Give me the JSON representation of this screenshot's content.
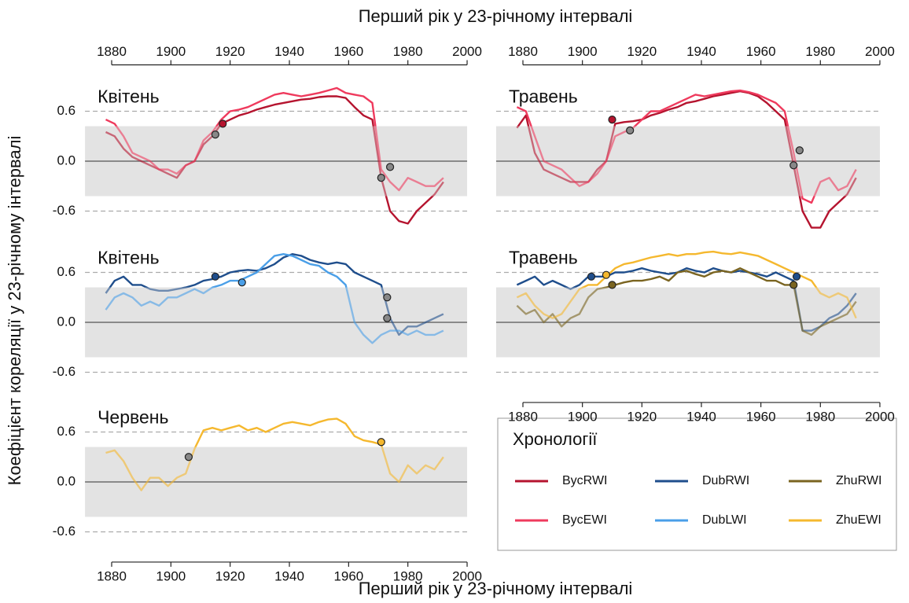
{
  "x_label": "Перший рік у 23-річному інтервалі",
  "y_label": "Коефіцієнт кореляції у 23-річному інтервалі",
  "legend_title": "Хронології",
  "chart_data": [
    {
      "type": "line",
      "title": "Квітень",
      "xaxis": "top",
      "yticklabels": true,
      "x": [
        1878,
        1881,
        1884,
        1887,
        1890,
        1893,
        1896,
        1899,
        1902,
        1905,
        1908,
        1911,
        1914,
        1917,
        1920,
        1923,
        1926,
        1929,
        1932,
        1935,
        1938,
        1941,
        1944,
        1947,
        1950,
        1953,
        1956,
        1959,
        1962,
        1965,
        1968,
        1971,
        1974,
        1977,
        1980,
        1983,
        1986,
        1989,
        1992
      ],
      "xlim": [
        1871,
        2000
      ],
      "xticks": [
        1880,
        1900,
        1920,
        1940,
        1960,
        1980,
        2000
      ],
      "ylim": [
        -0.85,
        0.95
      ],
      "yticks": [
        0.6,
        {
          "value": 0,
          "label": "0.0"
        },
        -0.6
      ],
      "shaded_range": [
        -0.42,
        0.42
      ],
      "series": [
        {
          "name": "BycRWI",
          "color": "#b5142f",
          "values": [
            0.35,
            0.3,
            0.15,
            0.05,
            0.0,
            -0.05,
            -0.1,
            -0.15,
            -0.2,
            -0.05,
            0.0,
            0.2,
            0.3,
            0.45,
            0.5,
            0.55,
            0.58,
            0.62,
            0.65,
            0.68,
            0.7,
            0.72,
            0.74,
            0.75,
            0.77,
            0.78,
            0.78,
            0.76,
            0.65,
            0.55,
            0.5,
            -0.2,
            -0.6,
            -0.72,
            -0.75,
            -0.6,
            -0.5,
            -0.4,
            -0.25
          ],
          "markers": {
            "x": [
              1917.5,
              1971
            ],
            "y": [
              0.45,
              -0.2
            ]
          }
        },
        {
          "name": "BycEWI",
          "color": "#ef3a5d",
          "values": [
            0.5,
            0.45,
            0.3,
            0.1,
            0.05,
            0.0,
            -0.1,
            -0.1,
            -0.15,
            -0.05,
            0.0,
            0.25,
            0.35,
            0.5,
            0.6,
            0.62,
            0.65,
            0.7,
            0.75,
            0.8,
            0.82,
            0.8,
            0.78,
            0.8,
            0.82,
            0.85,
            0.88,
            0.82,
            0.8,
            0.78,
            0.7,
            -0.1,
            -0.25,
            -0.35,
            -0.2,
            -0.25,
            -0.3,
            -0.3,
            -0.2
          ],
          "markers": {
            "x": [
              1915,
              1974
            ],
            "y": [
              0.32,
              -0.07
            ]
          }
        }
      ]
    },
    {
      "type": "line",
      "title": "Травень",
      "xaxis": "top",
      "yticklabels": false,
      "x": [
        1878,
        1881,
        1884,
        1887,
        1890,
        1893,
        1896,
        1899,
        1902,
        1905,
        1908,
        1911,
        1914,
        1917,
        1920,
        1923,
        1926,
        1929,
        1932,
        1935,
        1938,
        1941,
        1944,
        1947,
        1950,
        1953,
        1956,
        1959,
        1962,
        1965,
        1968,
        1971,
        1974,
        1977,
        1980,
        1983,
        1986,
        1989,
        1992
      ],
      "xlim": [
        1871,
        2000
      ],
      "xticks": [
        1880,
        1900,
        1920,
        1940,
        1960,
        1980,
        2000
      ],
      "ylim": [
        -0.85,
        0.95
      ],
      "yticks": [
        0.6,
        {
          "value": 0,
          "label": "0.0"
        },
        -0.6
      ],
      "shaded_range": [
        -0.42,
        0.42
      ],
      "series": [
        {
          "name": "BycRWI",
          "color": "#b5142f",
          "values": [
            0.4,
            0.55,
            0.1,
            -0.1,
            -0.15,
            -0.2,
            -0.25,
            -0.25,
            -0.25,
            -0.1,
            0.0,
            0.45,
            0.47,
            0.48,
            0.5,
            0.55,
            0.58,
            0.62,
            0.65,
            0.7,
            0.72,
            0.75,
            0.78,
            0.8,
            0.82,
            0.84,
            0.82,
            0.78,
            0.7,
            0.6,
            0.5,
            -0.05,
            -0.6,
            -0.8,
            -0.8,
            -0.6,
            -0.5,
            -0.4,
            -0.2
          ],
          "markers": {
            "x": [
              1910,
              1971
            ],
            "y": [
              0.5,
              -0.05
            ]
          }
        },
        {
          "name": "BycEWI",
          "color": "#ef3a5d",
          "values": [
            0.65,
            0.6,
            0.3,
            0.0,
            -0.05,
            -0.1,
            -0.2,
            -0.3,
            -0.25,
            -0.15,
            0.0,
            0.3,
            0.35,
            0.4,
            0.5,
            0.6,
            0.6,
            0.65,
            0.7,
            0.75,
            0.8,
            0.78,
            0.8,
            0.82,
            0.84,
            0.85,
            0.83,
            0.8,
            0.75,
            0.7,
            0.6,
            0.1,
            -0.45,
            -0.5,
            -0.25,
            -0.2,
            -0.35,
            -0.3,
            -0.1
          ],
          "markers": {
            "x": [
              1916,
              1973
            ],
            "y": [
              0.37,
              0.13
            ]
          }
        }
      ]
    },
    {
      "type": "line",
      "title": "Квітень",
      "xaxis": "none",
      "yticklabels": true,
      "x": [
        1878,
        1881,
        1884,
        1887,
        1890,
        1893,
        1896,
        1899,
        1902,
        1905,
        1908,
        1911,
        1914,
        1917,
        1920,
        1923,
        1926,
        1929,
        1932,
        1935,
        1938,
        1941,
        1944,
        1947,
        1950,
        1953,
        1956,
        1959,
        1962,
        1965,
        1968,
        1971,
        1974,
        1977,
        1980,
        1983,
        1986,
        1989,
        1992
      ],
      "xlim": [
        1871,
        2000
      ],
      "xticks": [
        1880,
        1900,
        1920,
        1940,
        1960,
        1980,
        2000
      ],
      "ylim": [
        -0.85,
        0.95
      ],
      "yticks": [
        0.6,
        {
          "value": 0,
          "label": "0.0"
        },
        -0.6
      ],
      "shaded_range": [
        -0.42,
        0.42
      ],
      "series": [
        {
          "name": "DubRWI",
          "color": "#1f4e8c",
          "values": [
            0.35,
            0.5,
            0.55,
            0.45,
            0.45,
            0.4,
            0.38,
            0.38,
            0.4,
            0.42,
            0.45,
            0.5,
            0.52,
            0.55,
            0.6,
            0.62,
            0.63,
            0.62,
            0.65,
            0.7,
            0.78,
            0.82,
            0.8,
            0.75,
            0.72,
            0.7,
            0.72,
            0.7,
            0.6,
            0.55,
            0.5,
            0.45,
            0.05,
            -0.15,
            -0.05,
            -0.05,
            0.0,
            0.05,
            0.1
          ],
          "markers": {
            "x": [
              1915,
              1973
            ],
            "y": [
              0.55,
              0.3
            ]
          }
        },
        {
          "name": "DubLWI",
          "color": "#4a9fe8",
          "values": [
            0.15,
            0.3,
            0.35,
            0.3,
            0.2,
            0.25,
            0.2,
            0.3,
            0.3,
            0.35,
            0.4,
            0.35,
            0.42,
            0.45,
            0.5,
            0.5,
            0.55,
            0.6,
            0.7,
            0.8,
            0.82,
            0.8,
            0.75,
            0.7,
            0.68,
            0.6,
            0.55,
            0.45,
            0.0,
            -0.15,
            -0.25,
            -0.15,
            -0.1,
            -0.1,
            -0.15,
            -0.1,
            -0.15,
            -0.15,
            -0.1
          ],
          "markers": {
            "x": [
              1924,
              1973
            ],
            "y": [
              0.48,
              0.05
            ]
          }
        }
      ]
    },
    {
      "type": "line",
      "title": "Травень",
      "xaxis": "bottom",
      "yticklabels": false,
      "x": [
        1878,
        1881,
        1884,
        1887,
        1890,
        1893,
        1896,
        1899,
        1902,
        1905,
        1908,
        1911,
        1914,
        1917,
        1920,
        1923,
        1926,
        1929,
        1932,
        1935,
        1938,
        1941,
        1944,
        1947,
        1950,
        1953,
        1956,
        1959,
        1962,
        1965,
        1968,
        1971,
        1974,
        1977,
        1980,
        1983,
        1986,
        1989,
        1992
      ],
      "xlim": [
        1871,
        2000
      ],
      "xticks": [
        1880,
        1900,
        1920,
        1940,
        1960,
        1980,
        2000
      ],
      "ylim": [
        -0.85,
        0.95
      ],
      "yticks": [
        0.6,
        {
          "value": 0,
          "label": "0.0"
        },
        -0.6
      ],
      "shaded_range": [
        -0.42,
        0.42
      ],
      "series": [
        {
          "name": "DubRWI",
          "color": "#1f4e8c",
          "values": [
            0.45,
            0.5,
            0.55,
            0.45,
            0.5,
            0.45,
            0.4,
            0.45,
            0.55,
            0.55,
            0.55,
            0.6,
            0.6,
            0.62,
            0.65,
            0.62,
            0.6,
            0.58,
            0.6,
            0.65,
            0.62,
            0.6,
            0.65,
            0.62,
            0.6,
            0.62,
            0.6,
            0.58,
            0.55,
            0.6,
            0.55,
            0.5,
            -0.1,
            -0.1,
            -0.05,
            0.05,
            0.1,
            0.2,
            0.35
          ],
          "markers": {
            "x": [
              1903,
              1972
            ],
            "y": [
              0.55,
              0.55
            ]
          }
        },
        {
          "name": "ZhuRWI",
          "color": "#7a6420",
          "values": [
            0.2,
            0.1,
            0.15,
            0.0,
            0.1,
            -0.05,
            0.05,
            0.1,
            0.3,
            0.4,
            0.42,
            0.45,
            0.48,
            0.5,
            0.5,
            0.52,
            0.55,
            0.5,
            0.6,
            0.62,
            0.58,
            0.55,
            0.6,
            0.62,
            0.6,
            0.65,
            0.6,
            0.55,
            0.5,
            0.5,
            0.45,
            0.45,
            -0.1,
            -0.15,
            -0.05,
            0.0,
            0.05,
            0.1,
            0.25
          ],
          "markers": {
            "x": [
              1910,
              1971
            ],
            "y": [
              0.45,
              0.45
            ]
          }
        },
        {
          "name": "ZhuEWI",
          "color": "#f5b82e",
          "values": [
            0.3,
            0.35,
            0.2,
            0.1,
            0.05,
            0.1,
            0.25,
            0.4,
            0.45,
            0.45,
            0.55,
            0.65,
            0.7,
            0.72,
            0.75,
            0.78,
            0.8,
            0.82,
            0.8,
            0.82,
            0.82,
            0.84,
            0.85,
            0.83,
            0.82,
            0.84,
            0.82,
            0.8,
            0.75,
            0.7,
            0.65,
            0.6,
            0.55,
            0.5,
            0.35,
            0.3,
            0.35,
            0.3,
            0.05
          ],
          "markers": {
            "x": [
              1908
            ],
            "y": [
              0.57
            ]
          }
        }
      ]
    },
    {
      "type": "line",
      "title": "Червень",
      "xaxis": "bottom",
      "yticklabels": true,
      "x": [
        1878,
        1881,
        1884,
        1887,
        1890,
        1893,
        1896,
        1899,
        1902,
        1905,
        1908,
        1911,
        1914,
        1917,
        1920,
        1923,
        1926,
        1929,
        1932,
        1935,
        1938,
        1941,
        1944,
        1947,
        1950,
        1953,
        1956,
        1959,
        1962,
        1965,
        1968,
        1971,
        1974,
        1977,
        1980,
        1983,
        1986,
        1989,
        1992
      ],
      "xlim": [
        1871,
        2000
      ],
      "xticks": [
        1880,
        1900,
        1920,
        1940,
        1960,
        1980,
        2000
      ],
      "ylim": [
        -0.85,
        0.95
      ],
      "yticks": [
        0.6,
        {
          "value": 0,
          "label": "0.0"
        },
        -0.6
      ],
      "shaded_range": [
        -0.42,
        0.42
      ],
      "series": [
        {
          "name": "ZhuEWI",
          "color": "#f5b82e",
          "values": [
            0.35,
            0.38,
            0.25,
            0.05,
            -0.1,
            0.05,
            0.05,
            -0.05,
            0.05,
            0.1,
            0.4,
            0.62,
            0.65,
            0.62,
            0.65,
            0.68,
            0.62,
            0.65,
            0.6,
            0.65,
            0.7,
            0.72,
            0.7,
            0.68,
            0.72,
            0.75,
            0.76,
            0.7,
            0.55,
            0.5,
            0.48,
            0.45,
            0.1,
            0.0,
            0.2,
            0.1,
            0.2,
            0.15,
            0.3
          ],
          "markers": {
            "x": [
              1906,
              1971
            ],
            "y": [
              0.3,
              0.48
            ]
          }
        }
      ]
    }
  ]
}
